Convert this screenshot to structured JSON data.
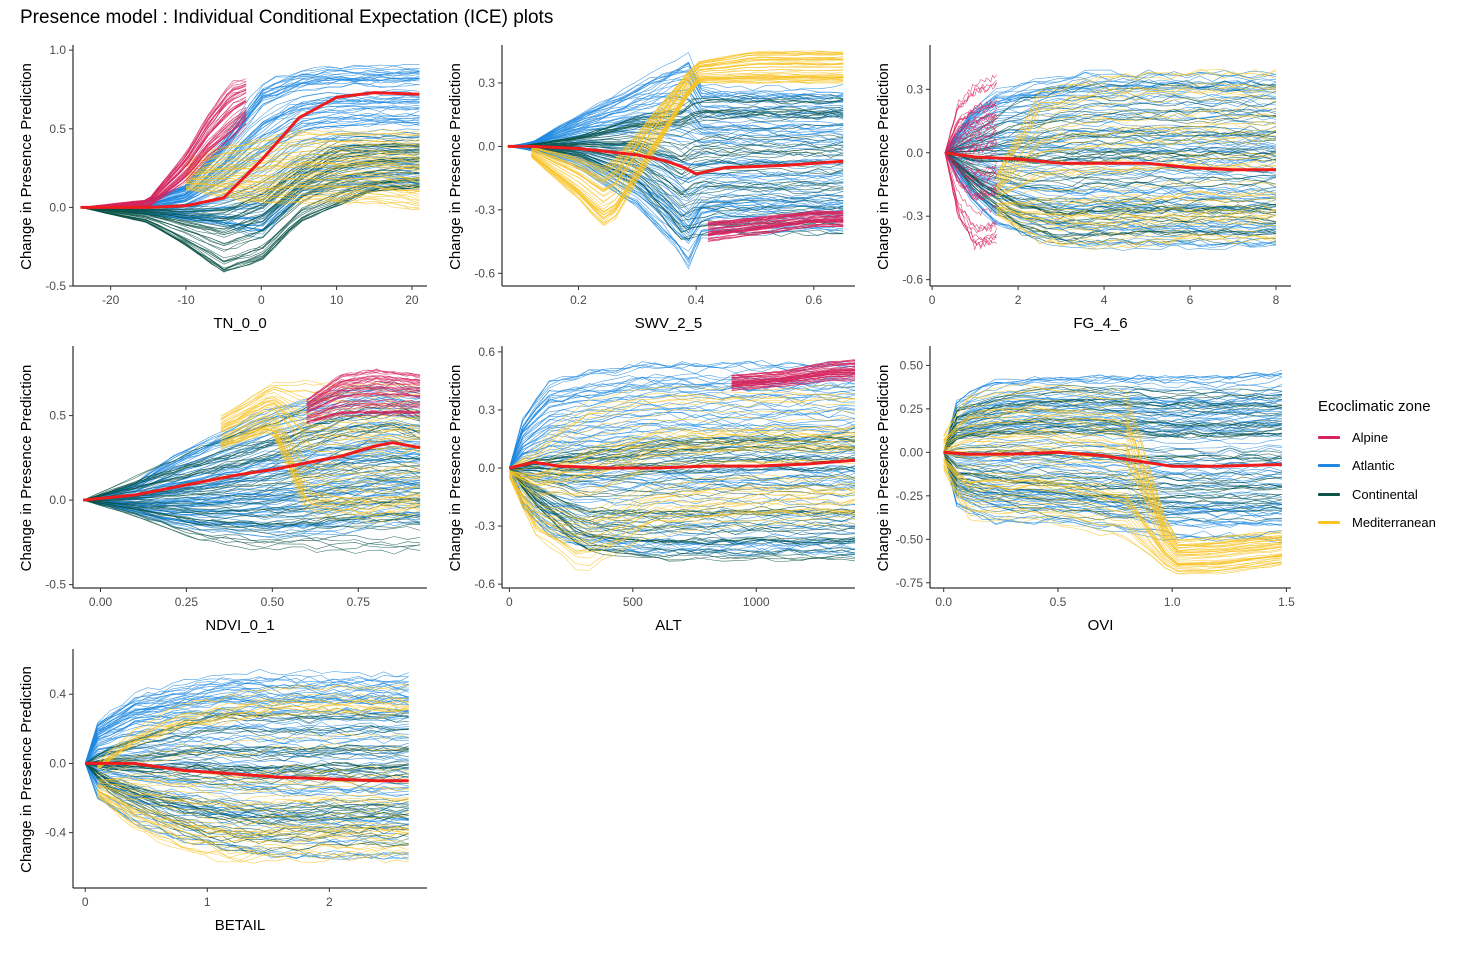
{
  "title": "Presence model : Individual Conditional Expectation (ICE) plots",
  "colors": {
    "Alpine": "#D6245E",
    "Atlantic": "#1E88E0",
    "Continental": "#0B5447",
    "Mediterranean": "#F7C325",
    "mean": "#EE1C1C"
  },
  "legend": {
    "title": "Ecoclimatic zone",
    "placement": "right",
    "items": [
      "Alpine",
      "Atlantic",
      "Continental",
      "Mediterranean"
    ]
  },
  "chart_data": [
    {
      "type": "line",
      "xlabel": "TN_0_0",
      "ylabel": "Change in Presence Prediction",
      "xlim": [
        -25,
        22
      ],
      "ylim": [
        -0.5,
        1.02
      ],
      "xticks": [
        -20,
        -10,
        0,
        10,
        20
      ],
      "yticks": [
        -0.5,
        0.0,
        0.5,
        1.0
      ],
      "mean_curve": {
        "x": [
          -24,
          -20,
          -15,
          -10,
          -5,
          0,
          5,
          10,
          15,
          21
        ],
        "y": [
          0.0,
          0.0,
          0.0,
          0.01,
          0.06,
          0.3,
          0.57,
          0.7,
          0.73,
          0.72
        ]
      },
      "bands": [
        {
          "zone": "Atlantic",
          "x": [
            -24,
            -20,
            -15,
            -10,
            -5,
            0,
            5,
            10,
            15,
            21
          ],
          "lo": [
            0.0,
            -0.02,
            -0.05,
            -0.08,
            -0.12,
            -0.2,
            0.05,
            0.1,
            0.12,
            0.12
          ],
          "hi": [
            0.0,
            0.02,
            0.05,
            0.15,
            0.45,
            0.82,
            0.9,
            0.92,
            0.92,
            0.92
          ]
        },
        {
          "zone": "Alpine",
          "x": [
            -24,
            -15,
            -10,
            -7,
            -4,
            -2
          ],
          "lo": [
            0.0,
            0.0,
            0.15,
            0.3,
            0.4,
            0.5
          ],
          "hi": [
            0.0,
            0.05,
            0.35,
            0.6,
            0.8,
            0.82
          ]
        },
        {
          "zone": "Continental",
          "x": [
            -24,
            -15,
            -10,
            -5,
            0,
            5,
            10,
            15,
            21
          ],
          "lo": [
            0.0,
            -0.1,
            -0.25,
            -0.42,
            -0.35,
            -0.1,
            0.0,
            0.1,
            0.12
          ],
          "hi": [
            0.0,
            0.0,
            0.02,
            0.05,
            0.15,
            0.3,
            0.45,
            0.45,
            0.45
          ]
        },
        {
          "zone": "Mediterranean",
          "x": [
            -10,
            -5,
            0,
            5,
            10,
            15,
            21
          ],
          "lo": [
            0.1,
            0.05,
            0.0,
            0.0,
            0.0,
            0.0,
            -0.05
          ],
          "hi": [
            0.3,
            0.4,
            0.45,
            0.5,
            0.5,
            0.5,
            0.5
          ]
        }
      ]
    },
    {
      "type": "line",
      "xlabel": "SWV_2_5",
      "ylabel": "Change in Presence Prediction",
      "xlim": [
        0.07,
        0.67
      ],
      "ylim": [
        -0.66,
        0.47
      ],
      "xticks": [
        0.2,
        0.4,
        0.6
      ],
      "yticks": [
        -0.6,
        -0.3,
        0.0,
        0.3
      ],
      "mean_curve": {
        "x": [
          0.08,
          0.12,
          0.2,
          0.3,
          0.35,
          0.38,
          0.4,
          0.45,
          0.55,
          0.65
        ],
        "y": [
          0.0,
          0.0,
          -0.01,
          -0.04,
          -0.07,
          -0.1,
          -0.13,
          -0.1,
          -0.09,
          -0.07
        ]
      },
      "bands": [
        {
          "zone": "Atlantic",
          "x": [
            0.08,
            0.12,
            0.2,
            0.3,
            0.35,
            0.39,
            0.4,
            0.45,
            0.55,
            0.65
          ],
          "lo": [
            0.0,
            -0.02,
            -0.1,
            -0.3,
            -0.45,
            -0.6,
            -0.45,
            -0.42,
            -0.42,
            -0.42
          ],
          "hi": [
            0.0,
            0.02,
            0.15,
            0.3,
            0.38,
            0.44,
            0.3,
            0.28,
            0.28,
            0.28
          ]
        },
        {
          "zone": "Continental",
          "x": [
            0.1,
            0.2,
            0.3,
            0.38,
            0.4,
            0.5,
            0.65
          ],
          "lo": [
            0.0,
            -0.05,
            -0.2,
            -0.5,
            -0.45,
            -0.45,
            -0.45
          ],
          "hi": [
            0.0,
            0.05,
            0.15,
            0.2,
            0.25,
            0.25,
            0.25
          ]
        },
        {
          "zone": "Mediterranean",
          "x": [
            0.12,
            0.2,
            0.25,
            0.4,
            0.5,
            0.65
          ],
          "lo": [
            -0.05,
            -0.25,
            -0.4,
            0.3,
            0.3,
            0.3
          ],
          "hi": [
            0.0,
            -0.05,
            -0.1,
            0.4,
            0.45,
            0.45
          ]
        },
        {
          "zone": "Alpine",
          "x": [
            0.42,
            0.5,
            0.6,
            0.65
          ],
          "lo": [
            -0.45,
            -0.42,
            -0.38,
            -0.38
          ],
          "hi": [
            -0.35,
            -0.33,
            -0.3,
            -0.3
          ]
        }
      ]
    },
    {
      "type": "line",
      "xlabel": "FG_4_6",
      "ylabel": "Change in Presence Prediction",
      "xlim": [
        -0.05,
        8.35
      ],
      "ylim": [
        -0.63,
        0.5
      ],
      "xticks": [
        0,
        2,
        4,
        6,
        8
      ],
      "yticks": [
        -0.6,
        -0.3,
        0.0,
        0.3
      ],
      "mean_curve": {
        "x": [
          0.3,
          1,
          2,
          3,
          4,
          5,
          6,
          7,
          8
        ],
        "y": [
          0.0,
          -0.02,
          -0.03,
          -0.05,
          -0.05,
          -0.05,
          -0.07,
          -0.08,
          -0.08
        ]
      },
      "bands": [
        {
          "zone": "Atlantic",
          "x": [
            0.3,
            0.8,
            1.5,
            2.5,
            3.5,
            5,
            7,
            8
          ],
          "lo": [
            0.0,
            -0.2,
            -0.35,
            -0.42,
            -0.45,
            -0.45,
            -0.45,
            -0.45
          ],
          "hi": [
            0.0,
            0.18,
            0.3,
            0.35,
            0.38,
            0.38,
            0.38,
            0.38
          ]
        },
        {
          "zone": "Continental",
          "x": [
            0.3,
            1,
            2,
            3,
            4,
            6,
            8
          ],
          "lo": [
            0.0,
            -0.2,
            -0.4,
            -0.48,
            -0.45,
            -0.45,
            -0.45
          ],
          "hi": [
            0.0,
            0.1,
            0.25,
            0.32,
            0.33,
            0.33,
            0.33
          ]
        },
        {
          "zone": "Alpine",
          "x": [
            0.3,
            0.6,
            1,
            1.5
          ],
          "lo": [
            0.0,
            -0.3,
            -0.45,
            -0.42
          ],
          "hi": [
            0.0,
            0.25,
            0.35,
            0.38
          ]
        },
        {
          "zone": "Mediterranean",
          "x": [
            1.5,
            2.5,
            4,
            6,
            8
          ],
          "lo": [
            -0.3,
            -0.45,
            -0.48,
            -0.45,
            -0.45
          ],
          "hi": [
            -0.1,
            0.3,
            0.38,
            0.4,
            0.4
          ]
        }
      ]
    },
    {
      "type": "line",
      "xlabel": "NDVI_0_1",
      "ylabel": "Change in Presence Prediction",
      "xlim": [
        -0.08,
        0.95
      ],
      "ylim": [
        -0.52,
        0.9
      ],
      "xticks": [
        0.0,
        0.25,
        0.5,
        0.75
      ],
      "yticks": [
        -0.5,
        0.0,
        0.5
      ],
      "mean_curve": {
        "x": [
          -0.05,
          0.0,
          0.1,
          0.2,
          0.3,
          0.4,
          0.5,
          0.6,
          0.7,
          0.8,
          0.85,
          0.93
        ],
        "y": [
          0.0,
          0.01,
          0.03,
          0.07,
          0.11,
          0.15,
          0.18,
          0.22,
          0.26,
          0.32,
          0.34,
          0.31
        ]
      },
      "bands": [
        {
          "zone": "Atlantic",
          "x": [
            -0.05,
            0.1,
            0.2,
            0.3,
            0.4,
            0.5,
            0.6,
            0.7,
            0.8,
            0.93
          ],
          "lo": [
            0.0,
            -0.08,
            -0.15,
            -0.18,
            -0.2,
            -0.22,
            -0.22,
            -0.2,
            -0.15,
            -0.15
          ],
          "hi": [
            0.0,
            0.1,
            0.25,
            0.35,
            0.45,
            0.55,
            0.6,
            0.65,
            0.68,
            0.65
          ]
        },
        {
          "zone": "Continental",
          "x": [
            -0.05,
            0.1,
            0.3,
            0.5,
            0.7,
            0.85,
            0.93
          ],
          "lo": [
            0.0,
            -0.1,
            -0.25,
            -0.3,
            -0.3,
            -0.32,
            -0.3
          ],
          "hi": [
            0.0,
            0.15,
            0.35,
            0.5,
            0.7,
            0.75,
            0.7
          ]
        },
        {
          "zone": "Alpine",
          "x": [
            0.6,
            0.7,
            0.8,
            0.9,
            0.93
          ],
          "lo": [
            0.45,
            0.5,
            0.5,
            0.5,
            0.5
          ],
          "hi": [
            0.6,
            0.75,
            0.78,
            0.76,
            0.75
          ]
        },
        {
          "zone": "Mediterranean",
          "x": [
            0.35,
            0.5,
            0.6,
            0.8,
            0.93
          ],
          "lo": [
            0.3,
            0.4,
            -0.1,
            -0.15,
            -0.1
          ],
          "hi": [
            0.5,
            0.7,
            0.72,
            0.7,
            0.7
          ]
        }
      ]
    },
    {
      "type": "line",
      "xlabel": "ALT",
      "ylabel": "Change in Presence Prediction",
      "xlim": [
        -30,
        1400
      ],
      "ylim": [
        -0.62,
        0.62
      ],
      "xticks": [
        0,
        500,
        1000
      ],
      "yticks": [
        -0.6,
        -0.3,
        0.0,
        0.3,
        0.6
      ],
      "mean_curve": {
        "x": [
          0,
          100,
          200,
          400,
          600,
          800,
          1000,
          1200,
          1400
        ],
        "y": [
          0.0,
          0.03,
          0.01,
          0.0,
          0.0,
          0.01,
          0.01,
          0.02,
          0.04
        ]
      },
      "bands": [
        {
          "zone": "Atlantic",
          "x": [
            0,
            50,
            150,
            300,
            500,
            800,
            1100,
            1400
          ],
          "lo": [
            0.0,
            -0.2,
            -0.35,
            -0.42,
            -0.45,
            -0.45,
            -0.45,
            -0.45
          ],
          "hi": [
            0.0,
            0.25,
            0.45,
            0.5,
            0.55,
            0.55,
            0.55,
            0.55
          ]
        },
        {
          "zone": "Continental",
          "x": [
            0,
            100,
            300,
            600,
            1000,
            1400
          ],
          "lo": [
            0.0,
            -0.2,
            -0.45,
            -0.5,
            -0.5,
            -0.5
          ],
          "hi": [
            0.0,
            0.05,
            0.1,
            0.15,
            0.18,
            0.18
          ]
        },
        {
          "zone": "Mediterranean",
          "x": [
            0,
            100,
            300,
            600,
            1000,
            1400
          ],
          "lo": [
            -0.05,
            -0.35,
            -0.55,
            -0.35,
            -0.3,
            -0.3
          ],
          "hi": [
            0.0,
            0.1,
            0.35,
            0.42,
            0.42,
            0.42
          ]
        },
        {
          "zone": "Alpine",
          "x": [
            900,
            1100,
            1300,
            1400
          ],
          "lo": [
            0.4,
            0.42,
            0.45,
            0.45
          ],
          "hi": [
            0.48,
            0.5,
            0.55,
            0.56
          ]
        }
      ]
    },
    {
      "type": "line",
      "xlabel": "OVI",
      "ylabel": "Change in Presence Prediction",
      "xlim": [
        -0.06,
        1.52
      ],
      "ylim": [
        -0.78,
        0.6
      ],
      "xticks": [
        0.0,
        0.5,
        1.0,
        1.5
      ],
      "yticks": [
        -0.75,
        -0.5,
        -0.25,
        0.0,
        0.25,
        0.5
      ],
      "mean_curve": {
        "x": [
          0.0,
          0.1,
          0.3,
          0.5,
          0.7,
          0.9,
          1.0,
          1.2,
          1.48
        ],
        "y": [
          0.0,
          -0.01,
          -0.01,
          0.0,
          -0.02,
          -0.06,
          -0.08,
          -0.08,
          -0.07
        ]
      },
      "bands": [
        {
          "zone": "Atlantic",
          "x": [
            0.0,
            0.05,
            0.2,
            0.5,
            0.8,
            1.0,
            1.2,
            1.48
          ],
          "lo": [
            0.0,
            -0.3,
            -0.4,
            -0.4,
            -0.45,
            -0.5,
            -0.5,
            -0.5
          ],
          "hi": [
            0.0,
            0.3,
            0.42,
            0.45,
            0.45,
            0.45,
            0.45,
            0.48
          ]
        },
        {
          "zone": "Continental",
          "x": [
            0.0,
            0.05,
            0.3,
            0.6,
            1.0,
            1.48
          ],
          "lo": [
            0.0,
            -0.25,
            -0.35,
            -0.4,
            -0.4,
            -0.4
          ],
          "hi": [
            0.0,
            0.25,
            0.35,
            0.38,
            0.35,
            0.35
          ]
        },
        {
          "zone": "Mediterranean",
          "x": [
            0.0,
            0.1,
            0.4,
            0.8,
            1.0,
            1.2,
            1.48
          ],
          "lo": [
            -0.1,
            -0.4,
            -0.4,
            -0.5,
            -0.7,
            -0.7,
            -0.65
          ],
          "hi": [
            0.1,
            0.35,
            0.4,
            0.35,
            -0.5,
            -0.48,
            -0.45
          ]
        }
      ]
    },
    {
      "type": "line",
      "xlabel": "BETAIL",
      "ylabel": "Change in Presence Prediction",
      "xlim": [
        -0.1,
        2.8
      ],
      "ylim": [
        -0.72,
        0.65
      ],
      "xticks": [
        0,
        1,
        2
      ],
      "yticks": [
        -0.4,
        0.0,
        0.4
      ],
      "mean_curve": {
        "x": [
          0.0,
          0.1,
          0.4,
          0.8,
          1.2,
          1.6,
          2.0,
          2.4,
          2.65
        ],
        "y": [
          0.0,
          0.0,
          0.0,
          -0.04,
          -0.06,
          -0.08,
          -0.09,
          -0.1,
          -0.1
        ]
      },
      "bands": [
        {
          "zone": "Atlantic",
          "x": [
            0.0,
            0.1,
            0.4,
            0.8,
            1.2,
            1.6,
            2.0,
            2.65
          ],
          "lo": [
            0.0,
            -0.2,
            -0.35,
            -0.45,
            -0.5,
            -0.55,
            -0.55,
            -0.55
          ],
          "hi": [
            0.0,
            0.25,
            0.42,
            0.5,
            0.55,
            0.55,
            0.55,
            0.55
          ]
        },
        {
          "zone": "Continental",
          "x": [
            0.0,
            0.2,
            0.6,
            1.0,
            1.4,
            2.0,
            2.65
          ],
          "lo": [
            0.0,
            -0.2,
            -0.4,
            -0.55,
            -0.6,
            -0.55,
            -0.55
          ],
          "hi": [
            0.0,
            0.1,
            0.2,
            0.3,
            0.3,
            0.3,
            0.3
          ]
        },
        {
          "zone": "Mediterranean",
          "x": [
            0.1,
            0.4,
            0.8,
            1.2,
            1.6,
            2.0,
            2.65
          ],
          "lo": [
            -0.2,
            -0.4,
            -0.55,
            -0.62,
            -0.6,
            -0.6,
            -0.6
          ],
          "hi": [
            0.0,
            0.2,
            0.35,
            0.4,
            0.45,
            0.45,
            0.45
          ]
        }
      ]
    }
  ]
}
